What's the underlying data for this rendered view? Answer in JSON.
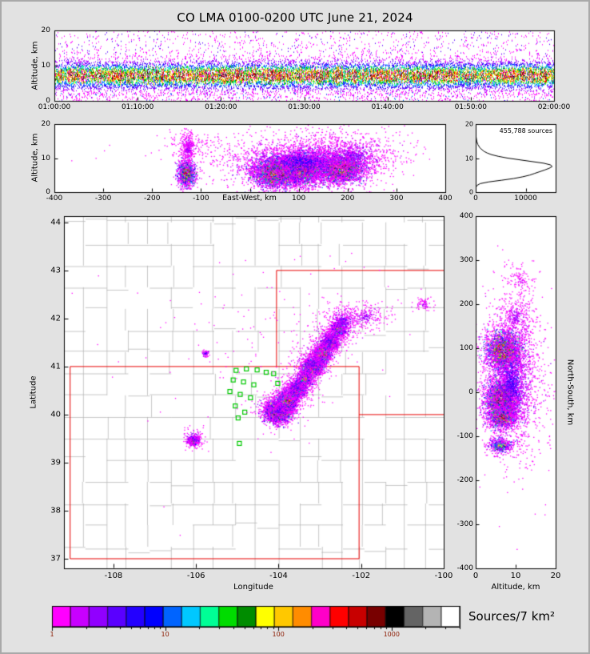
{
  "title": "CO LMA 0100-0200 UTC June 21, 2024",
  "colors": {
    "background": "#e2e2e2",
    "panel": "#ffffff",
    "frame": "#000000",
    "county": "#b0b0b0",
    "state": "#e80000",
    "station": "#00c800",
    "histogram_line": "#000000",
    "colorbar_tick_text": "#8b1a00"
  },
  "colormap": [
    "#ff00ff",
    "#c800ff",
    "#9100ff",
    "#5a00ff",
    "#2300ff",
    "#0000ff",
    "#0064ff",
    "#00c8ff",
    "#00ff96",
    "#00dc00",
    "#008c00",
    "#ffff00",
    "#ffc800",
    "#ff8c00",
    "#ff00c8",
    "#ff0000",
    "#c80000",
    "#780000",
    "#000000",
    "#646464",
    "#b4b4b4",
    "#ffffff"
  ],
  "colorbar": {
    "label": "Sources/7 km²",
    "tick_labels": [
      "1",
      "10",
      "100",
      "1000"
    ],
    "tick_values": [
      1,
      10,
      100,
      1000
    ],
    "log_max": 3.60206
  },
  "panels": {
    "time_height": {
      "ylabel": "Altitude, km",
      "ytick_vals": [
        0,
        10,
        20
      ],
      "ytick_labels": [
        "0",
        "10",
        "20"
      ],
      "xtick_vals": [
        0,
        600,
        1200,
        1800,
        2400,
        3000,
        3600
      ],
      "xtick_labels": [
        "01:00:00",
        "01:10:00",
        "01:20:00",
        "01:30:00",
        "01:40:00",
        "01:50:00",
        "02:00:00"
      ]
    },
    "ew": {
      "ylabel": "Altitude, km",
      "xlabel": "East-West, km",
      "ytick_vals": [
        0,
        10,
        20
      ],
      "ytick_labels": [
        "0",
        "10",
        "20"
      ],
      "xtick_vals": [
        -400,
        -300,
        -200,
        -100,
        100,
        200,
        300,
        400
      ],
      "xtick_labels": [
        "-400",
        "-300",
        "-200",
        "-100",
        "100",
        "200",
        "300",
        "400"
      ]
    },
    "histogram": {
      "annotation": "455,788 sources",
      "xtick_vals": [
        0,
        10000
      ],
      "xtick_labels": [
        "0",
        "10000"
      ],
      "ytick_vals": [
        0,
        10,
        20
      ],
      "ytick_labels": [
        "0",
        "10",
        "20"
      ]
    },
    "map": {
      "xlabel": "Longitude",
      "ylabel": "Latitude",
      "xtick_vals": [
        -108,
        -106,
        -104,
        -102,
        -100
      ],
      "xtick_labels": [
        "-108",
        "-106",
        "-104",
        "-102",
        "-100"
      ],
      "ytick_vals": [
        37,
        38,
        39,
        40,
        41,
        42,
        43,
        44
      ],
      "ytick_labels": [
        "37",
        "38",
        "39",
        "40",
        "41",
        "42",
        "43",
        "44"
      ]
    },
    "ns": {
      "xlabel": "Altitude, km",
      "ylabel": "North-South, km",
      "xtick_vals": [
        0,
        10,
        20
      ],
      "xtick_labels": [
        "0",
        "10",
        "20"
      ],
      "ytick_vals": [
        -400,
        -300,
        -200,
        -100,
        0,
        100,
        200,
        300,
        400
      ],
      "ytick_labels": [
        "-400",
        "-300",
        "-200",
        "-100",
        "0",
        "100",
        "200",
        "300",
        "400"
      ]
    }
  },
  "chart_data": {
    "type": "composite",
    "description": "Lightning Mapping Array source-density figure: time-height panel, east-west cross-section, altitude histogram, plan-view map, north-south cross-section, log density colorbar (sources per 7 km^2, 1 to >1000)",
    "time_height": {
      "xrange_seconds": [
        0,
        3600
      ],
      "yrange_km": [
        0,
        20
      ],
      "mean_alt": 7.3,
      "sd_alt": 2.1,
      "sparse_fraction": 0.13,
      "points_per_column": 26
    },
    "ew": {
      "xrange_km": [
        -400,
        400
      ],
      "yrange_km": [
        0,
        20
      ],
      "clusters": [
        [
          -130,
          5.5,
          10,
          2.2,
          0.92,
          1600
        ],
        [
          -128,
          13,
          8,
          3,
          0.15,
          350
        ],
        [
          55,
          6,
          30,
          2.6,
          1.0,
          5200
        ],
        [
          110,
          7,
          25,
          2.8,
          0.95,
          3000
        ],
        [
          185,
          7,
          28,
          2.4,
          1.0,
          3800
        ],
        [
          110,
          9,
          90,
          4.5,
          0.22,
          2600
        ],
        [
          210,
          11,
          60,
          4,
          0.15,
          900
        ],
        [
          -120,
          14,
          35,
          2.5,
          0.08,
          150
        ],
        [
          50,
          12,
          200,
          4,
          0.03,
          150
        ]
      ]
    },
    "histogram": {
      "xrange": [
        0,
        16000
      ],
      "yrange_km": [
        0,
        20
      ],
      "profile": [
        [
          0,
          0
        ],
        [
          1,
          20
        ],
        [
          1.5,
          80
        ],
        [
          2,
          300
        ],
        [
          2.5,
          900
        ],
        [
          3,
          2600
        ],
        [
          3.5,
          5200
        ],
        [
          4,
          7600
        ],
        [
          4.5,
          9400
        ],
        [
          5,
          10800
        ],
        [
          5.5,
          11800
        ],
        [
          6,
          12800
        ],
        [
          6.5,
          13800
        ],
        [
          7,
          14700
        ],
        [
          7.5,
          15300
        ],
        [
          8,
          15000
        ],
        [
          8.5,
          13600
        ],
        [
          9,
          11200
        ],
        [
          9.5,
          8800
        ],
        [
          10,
          6400
        ],
        [
          10.5,
          4600
        ],
        [
          11,
          3200
        ],
        [
          11.5,
          2300
        ],
        [
          12,
          1650
        ],
        [
          13,
          850
        ],
        [
          14,
          430
        ],
        [
          15,
          210
        ],
        [
          16,
          100
        ],
        [
          17,
          45
        ],
        [
          18,
          15
        ],
        [
          19,
          4
        ],
        [
          20,
          0
        ]
      ]
    },
    "map": {
      "lon_range": [
        -109.2,
        -100.0
      ],
      "lat_range": [
        36.8,
        44.13
      ],
      "clusters": [
        [
          -104.02,
          40.07,
          0.17,
          0.12,
          1.0,
          4500
        ],
        [
          -103.8,
          40.3,
          0.13,
          0.1,
          0.9,
          2500
        ],
        [
          -103.58,
          40.52,
          0.11,
          0.09,
          0.8,
          1600
        ],
        [
          -103.38,
          40.75,
          0.1,
          0.09,
          0.7,
          1200
        ],
        [
          -103.17,
          41.02,
          0.12,
          0.1,
          0.95,
          2700
        ],
        [
          -102.95,
          41.28,
          0.11,
          0.1,
          0.9,
          2200
        ],
        [
          -102.75,
          41.52,
          0.1,
          0.09,
          0.8,
          1400
        ],
        [
          -102.55,
          41.78,
          0.12,
          0.1,
          0.55,
          800
        ],
        [
          -104.0,
          40.1,
          0.3,
          0.2,
          0.18,
          450
        ],
        [
          -103.6,
          40.55,
          0.3,
          0.2,
          0.18,
          450
        ],
        [
          -103.2,
          41.05,
          0.3,
          0.2,
          0.18,
          450
        ],
        [
          -102.8,
          41.55,
          0.3,
          0.2,
          0.18,
          450
        ],
        [
          -102.45,
          41.95,
          0.3,
          0.2,
          0.18,
          450
        ],
        [
          -101.9,
          42.05,
          0.35,
          0.18,
          0.12,
          250
        ],
        [
          -106.08,
          39.47,
          0.07,
          0.05,
          0.85,
          900
        ],
        [
          -106.05,
          39.5,
          0.16,
          0.11,
          0.15,
          180
        ],
        [
          -105.78,
          41.28,
          0.05,
          0.04,
          0.25,
          70
        ],
        [
          -100.5,
          42.3,
          0.14,
          0.09,
          0.1,
          80
        ],
        [
          -104.5,
          41.5,
          2.2,
          1.6,
          0.03,
          130
        ]
      ],
      "stations": [
        [
          -105.03,
          40.92
        ],
        [
          -104.78,
          40.95
        ],
        [
          -104.52,
          40.93
        ],
        [
          -104.3,
          40.88
        ],
        [
          -105.1,
          40.72
        ],
        [
          -104.85,
          40.68
        ],
        [
          -104.6,
          40.62
        ],
        [
          -105.18,
          40.48
        ],
        [
          -104.93,
          40.42
        ],
        [
          -104.68,
          40.35
        ],
        [
          -105.05,
          40.18
        ],
        [
          -104.82,
          40.05
        ],
        [
          -104.98,
          39.93
        ],
        [
          -104.12,
          40.85
        ],
        [
          -104.02,
          40.65
        ],
        [
          -104.95,
          39.4
        ]
      ],
      "state_borders": [
        [
          [
            -109.05,
            37
          ],
          [
            -109.05,
            41
          ]
        ],
        [
          [
            -109.05,
            41
          ],
          [
            -102.05,
            41
          ]
        ],
        [
          [
            -102.05,
            41
          ],
          [
            -102.05,
            37
          ]
        ],
        [
          [
            -102.05,
            37
          ],
          [
            -109.05,
            37
          ]
        ],
        [
          [
            -104.05,
            41
          ],
          [
            -104.05,
            43
          ]
        ],
        [
          [
            -104.05,
            43
          ],
          [
            -100.0,
            43
          ]
        ],
        [
          [
            -102.05,
            40
          ],
          [
            -100.0,
            40
          ]
        ]
      ]
    },
    "ns": {
      "xrange_km": [
        0,
        20
      ],
      "yrange_km": [
        -400,
        400
      ],
      "clusters": [
        [
          7,
          95,
          2.6,
          26,
          1.0,
          3600
        ],
        [
          6.5,
          -15,
          2.4,
          26,
          1.0,
          3800
        ],
        [
          6.5,
          -55,
          2.2,
          15,
          0.9,
          1500
        ],
        [
          6,
          -120,
          1.8,
          10,
          0.6,
          700
        ],
        [
          9,
          20,
          4.5,
          85,
          0.22,
          2400
        ],
        [
          10,
          170,
          3,
          35,
          0.12,
          350
        ],
        [
          11,
          255,
          2.5,
          25,
          0.08,
          120
        ],
        [
          10,
          50,
          5,
          200,
          0.03,
          150
        ]
      ]
    }
  }
}
